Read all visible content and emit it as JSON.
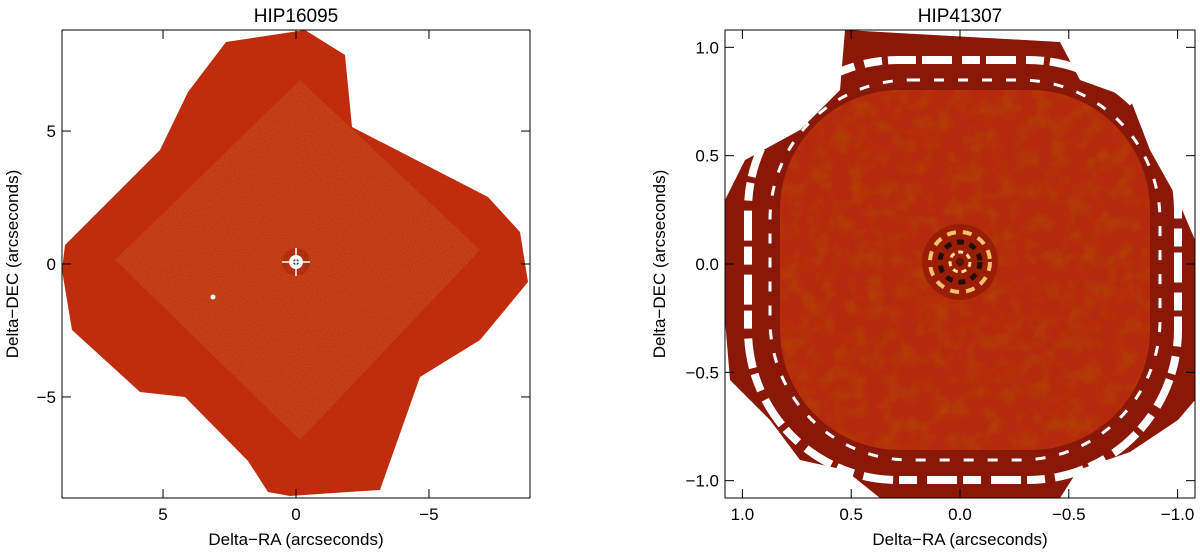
{
  "panels": [
    {
      "title": "HIP16095",
      "xlabel": "Delta−RA (arcseconds)",
      "ylabel": "Delta−DEC (arcseconds)",
      "xlim": [
        8.8,
        -8.8
      ],
      "ylim": [
        -8.8,
        8.8
      ],
      "xticks": [
        {
          "v": 5,
          "label": "5"
        },
        {
          "v": 0,
          "label": "0"
        },
        {
          "v": -5,
          "label": "−5"
        }
      ],
      "yticks": [
        {
          "v": 5,
          "label": "5"
        },
        {
          "v": 0,
          "label": "0"
        },
        {
          "v": -5,
          "label": "−5"
        }
      ],
      "colors": {
        "outer": "#bf2a0c",
        "inner": "#c03510",
        "speckle": "#8e1c06"
      }
    },
    {
      "title": "HIP41307",
      "xlabel": "Delta−RA (arcseconds)",
      "ylabel": "Delta−DEC (arcseconds)",
      "xlim": [
        1.08,
        -1.08
      ],
      "ylim": [
        -1.08,
        1.08
      ],
      "xticks": [
        {
          "v": 1.0,
          "label": "1.0"
        },
        {
          "v": 0.5,
          "label": "0.5"
        },
        {
          "v": 0.0,
          "label": "0.0"
        },
        {
          "v": -0.5,
          "label": "−0.5"
        },
        {
          "v": -1.0,
          "label": "−1.0"
        }
      ],
      "yticks": [
        {
          "v": 1.0,
          "label": "1.0"
        },
        {
          "v": 0.5,
          "label": "0.5"
        },
        {
          "v": 0.0,
          "label": "0.0"
        },
        {
          "v": -0.5,
          "label": "−0.5"
        },
        {
          "v": -1.0,
          "label": "−1.0"
        }
      ],
      "colors": {
        "outer": "#8a1808",
        "inner": "#b82c0c",
        "speckle": "#6e1002"
      }
    }
  ]
}
